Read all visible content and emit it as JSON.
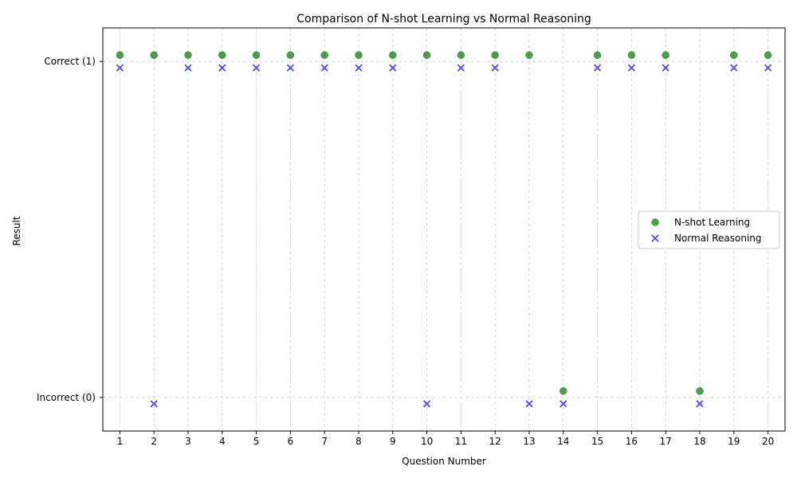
{
  "chart_data": {
    "type": "scatter",
    "title": "Comparison of N-shot Learning vs Normal Reasoning",
    "xlabel": "Question Number",
    "ylabel": "Result",
    "x": [
      1,
      2,
      3,
      4,
      5,
      6,
      7,
      8,
      9,
      10,
      11,
      12,
      13,
      14,
      15,
      16,
      17,
      18,
      19,
      20
    ],
    "xlim": [
      0.5,
      20.5
    ],
    "ylim": [
      -0.1,
      1.1
    ],
    "y_ticks": [
      {
        "value": 1,
        "label": "Correct (1)"
      },
      {
        "value": 0,
        "label": "Incorrect (0)"
      }
    ],
    "grid": true,
    "legend_position": "center-right",
    "series": [
      {
        "name": "N-shot Learning",
        "marker": "circle",
        "color": "#2e8b2e",
        "values": [
          1,
          1,
          1,
          1,
          1,
          1,
          1,
          1,
          1,
          1,
          1,
          1,
          1,
          0,
          1,
          1,
          1,
          0,
          1,
          1
        ]
      },
      {
        "name": "Normal Reasoning",
        "marker": "x",
        "color": "#4a4ae0",
        "values": [
          1,
          0,
          1,
          1,
          1,
          1,
          1,
          1,
          1,
          0,
          1,
          1,
          0,
          0,
          1,
          1,
          1,
          0,
          1,
          1
        ]
      }
    ]
  }
}
